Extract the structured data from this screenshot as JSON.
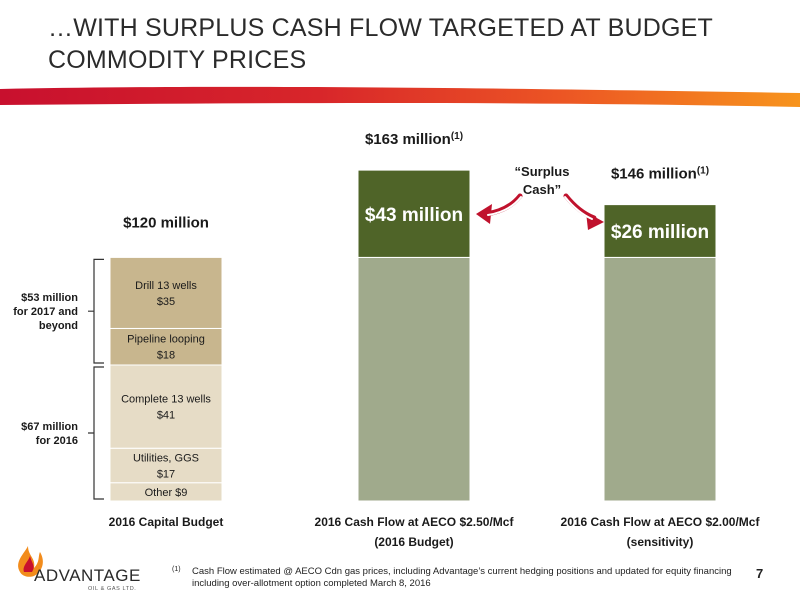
{
  "slide": {
    "title_line1": "…WITH SURPLUS CASH FLOW TARGETED AT BUDGET",
    "title_line2": "COMMODITY PRICES",
    "page_number": "7",
    "footnote_marker": "(1)",
    "footnote_text": "Cash Flow estimated @ AECO Cdn gas prices, including Advantage’s current hedging positions and updated for equity financing including over-allotment option completed March 8, 2016",
    "logo_text": "ADVANTAGE",
    "logo_subtext": "OIL & GAS LTD."
  },
  "colors": {
    "band_start": "#c8102e",
    "band_end": "#f7941d",
    "capital_dark": "#c8b68e",
    "capital_light": "#e6dcc6",
    "cashflow_base": "#a0aa8c",
    "surplus": "#4f6428",
    "arrow": "#c0122d",
    "segment_border": "#ffffff"
  },
  "chart_data": {
    "type": "bar",
    "stacked": true,
    "unit": "$ million",
    "grid": false,
    "categories": [
      {
        "line1": "2016 Capital Budget",
        "line2": ""
      },
      {
        "line1": "2016 Cash Flow at AECO $2.50/Mcf",
        "line2": "(2016 Budget)"
      },
      {
        "line1": "2016 Cash Flow at AECO $2.00/Mcf",
        "line2": "(sensitivity)"
      }
    ],
    "totals": [
      {
        "text": "$120 million",
        "sup": ""
      },
      {
        "text": "$163 million",
        "sup": "(1)"
      },
      {
        "text": "$146 million",
        "sup": "(1)"
      }
    ],
    "total_values": [
      120,
      163,
      146
    ],
    "capital_segments": [
      {
        "name": "Other",
        "label_line1": "Other  $9",
        "label_line2": "",
        "value": 9,
        "color": "capital_light"
      },
      {
        "name": "Utilities, GGS",
        "label_line1": "Utilities, GGS",
        "label_line2": "$17",
        "value": 17,
        "color": "capital_light"
      },
      {
        "name": "Complete 13 wells",
        "label_line1": "Complete 13 wells",
        "label_line2": "$41",
        "value": 41,
        "color": "capital_light"
      },
      {
        "name": "Pipeline looping",
        "label_line1": "Pipeline looping",
        "label_line2": "$18",
        "value": 18,
        "color": "capital_dark"
      },
      {
        "name": "Drill 13 wells",
        "label_line1": "Drill 13 wells",
        "label_line2": "$35",
        "value": 35,
        "color": "capital_dark"
      }
    ],
    "cashflow_bars": [
      {
        "base_value": 120,
        "surplus_value": 43,
        "surplus_label": "$43 million"
      },
      {
        "base_value": 120,
        "surplus_value": 26,
        "surplus_label": "$26 million"
      }
    ],
    "brackets": [
      {
        "line1": "$53 million",
        "line2": "for 2017 and",
        "line3": "beyond",
        "from": 67,
        "to": 120
      },
      {
        "line1": "$67 million",
        "line2": "for 2016",
        "line3": "",
        "from": 0,
        "to": 67
      }
    ],
    "annotation": {
      "line1": "“Surplus",
      "line2": "Cash”"
    }
  }
}
